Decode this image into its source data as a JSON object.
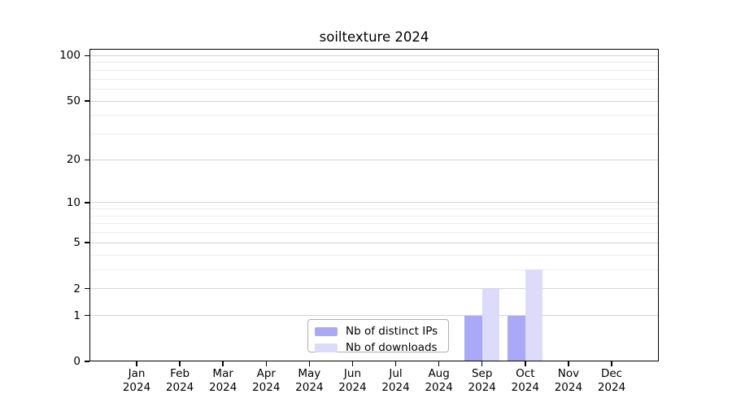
{
  "title": "soiltexture 2024",
  "chart_data": {
    "type": "bar",
    "title": "soiltexture 2024",
    "categories": [
      "Jan",
      "Feb",
      "Mar",
      "Apr",
      "May",
      "Jun",
      "Jul",
      "Aug",
      "Sep",
      "Oct",
      "Nov",
      "Dec"
    ],
    "category_year": "2024",
    "series": [
      {
        "name": "Nb of distinct IPs",
        "color": "#a9a9f8",
        "values": [
          0,
          0,
          0,
          0,
          0,
          0,
          0,
          0,
          1,
          1,
          0,
          0
        ]
      },
      {
        "name": "Nb of downloads",
        "color": "#dcdcfa",
        "values": [
          0,
          0,
          0,
          0,
          0,
          0,
          0,
          0,
          2,
          3,
          0,
          0
        ]
      }
    ],
    "yticks": [
      0,
      1,
      2,
      5,
      10,
      20,
      50,
      100
    ],
    "minor_gridlines": [
      3,
      4,
      6,
      7,
      8,
      9,
      30,
      40,
      60,
      70,
      80,
      90
    ],
    "scale": "log1p",
    "ylim": [
      0,
      111
    ],
    "xlabel": "",
    "ylabel": "",
    "grid": "on",
    "legend_position": "lower-center"
  },
  "colors": {
    "grid_major": "#d4d4d4",
    "grid_minor": "#ededed",
    "axis": "#000000",
    "legend_border": "#b0b0b0"
  }
}
